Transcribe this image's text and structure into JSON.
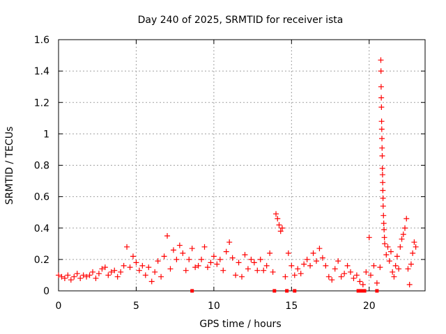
{
  "chart_data": {
    "type": "scatter",
    "title": "Day 240 of 2025, SRMTID for receiver ista",
    "xlabel": "GPS time / hours",
    "ylabel": "SRMTID / TECUs",
    "xlim": [
      0,
      23.6
    ],
    "ylim": [
      0,
      1.6
    ],
    "xticks": [
      0,
      5,
      10,
      15,
      20
    ],
    "xtick_labels": [
      "0",
      "5",
      "10",
      "15",
      "20"
    ],
    "yticks": [
      0,
      0.2,
      0.4,
      0.6,
      0.8,
      1,
      1.2,
      1.4,
      1.6
    ],
    "ytick_labels": [
      "0",
      "0.2",
      "0.4",
      "0.6",
      "0.8",
      "1",
      "1.2",
      "1.4",
      "1.6"
    ],
    "grid": true,
    "marker": "+",
    "color": "#ff0000",
    "series": [
      {
        "name": "SRMTID",
        "points": [
          [
            0.0,
            0.1
          ],
          [
            0.2,
            0.09
          ],
          [
            0.4,
            0.08
          ],
          [
            0.6,
            0.1
          ],
          [
            0.8,
            0.07
          ],
          [
            1.0,
            0.09
          ],
          [
            1.2,
            0.11
          ],
          [
            1.4,
            0.08
          ],
          [
            1.6,
            0.1
          ],
          [
            1.8,
            0.09
          ],
          [
            2.0,
            0.1
          ],
          [
            2.2,
            0.12
          ],
          [
            2.4,
            0.08
          ],
          [
            2.6,
            0.11
          ],
          [
            2.8,
            0.14
          ],
          [
            3.0,
            0.15
          ],
          [
            3.2,
            0.1
          ],
          [
            3.4,
            0.12
          ],
          [
            3.6,
            0.13
          ],
          [
            3.8,
            0.09
          ],
          [
            4.0,
            0.12
          ],
          [
            4.2,
            0.16
          ],
          [
            4.4,
            0.28
          ],
          [
            4.6,
            0.15
          ],
          [
            4.8,
            0.22
          ],
          [
            5.0,
            0.18
          ],
          [
            5.2,
            0.13
          ],
          [
            5.4,
            0.16
          ],
          [
            5.6,
            0.1
          ],
          [
            5.8,
            0.15
          ],
          [
            6.0,
            0.06
          ],
          [
            6.2,
            0.12
          ],
          [
            6.4,
            0.19
          ],
          [
            6.6,
            0.09
          ],
          [
            6.8,
            0.22
          ],
          [
            7.0,
            0.35
          ],
          [
            7.2,
            0.14
          ],
          [
            7.4,
            0.26
          ],
          [
            7.6,
            0.2
          ],
          [
            7.8,
            0.29
          ],
          [
            8.0,
            0.24
          ],
          [
            8.2,
            0.13
          ],
          [
            8.4,
            0.2
          ],
          [
            8.6,
            0.27
          ],
          [
            8.8,
            0.15
          ],
          [
            9.0,
            0.16
          ],
          [
            9.2,
            0.2
          ],
          [
            9.4,
            0.28
          ],
          [
            9.6,
            0.15
          ],
          [
            9.8,
            0.18
          ],
          [
            10.0,
            0.22
          ],
          [
            10.2,
            0.17
          ],
          [
            10.4,
            0.2
          ],
          [
            10.6,
            0.13
          ],
          [
            10.8,
            0.25
          ],
          [
            11.0,
            0.31
          ],
          [
            11.2,
            0.21
          ],
          [
            11.4,
            0.1
          ],
          [
            11.6,
            0.18
          ],
          [
            11.8,
            0.09
          ],
          [
            12.0,
            0.23
          ],
          [
            12.2,
            0.14
          ],
          [
            12.4,
            0.2
          ],
          [
            12.6,
            0.18
          ],
          [
            12.8,
            0.13
          ],
          [
            13.0,
            0.2
          ],
          [
            13.2,
            0.13
          ],
          [
            13.4,
            0.16
          ],
          [
            13.6,
            0.24
          ],
          [
            13.8,
            0.12
          ],
          [
            14.0,
            0.49
          ],
          [
            14.1,
            0.46
          ],
          [
            14.2,
            0.42
          ],
          [
            14.3,
            0.38
          ],
          [
            14.4,
            0.4
          ],
          [
            14.6,
            0.09
          ],
          [
            14.8,
            0.24
          ],
          [
            15.0,
            0.16
          ],
          [
            15.2,
            0.1
          ],
          [
            15.4,
            0.14
          ],
          [
            15.6,
            0.11
          ],
          [
            15.8,
            0.17
          ],
          [
            16.0,
            0.2
          ],
          [
            16.2,
            0.16
          ],
          [
            16.4,
            0.24
          ],
          [
            16.6,
            0.19
          ],
          [
            16.8,
            0.27
          ],
          [
            17.0,
            0.21
          ],
          [
            17.2,
            0.16
          ],
          [
            17.4,
            0.09
          ],
          [
            17.6,
            0.07
          ],
          [
            17.8,
            0.14
          ],
          [
            18.0,
            0.19
          ],
          [
            18.2,
            0.09
          ],
          [
            18.4,
            0.11
          ],
          [
            18.6,
            0.16
          ],
          [
            18.8,
            0.12
          ],
          [
            19.0,
            0.08
          ],
          [
            19.2,
            0.1
          ],
          [
            19.4,
            0.06
          ],
          [
            19.6,
            0.04
          ],
          [
            19.8,
            0.12
          ],
          [
            20.0,
            0.34
          ],
          [
            20.1,
            0.1
          ],
          [
            20.3,
            0.16
          ],
          [
            20.5,
            0.05
          ],
          [
            20.7,
            0.15
          ],
          [
            20.75,
            1.47
          ],
          [
            20.76,
            1.4
          ],
          [
            20.77,
            1.3
          ],
          [
            20.78,
            1.23
          ],
          [
            20.79,
            1.17
          ],
          [
            20.8,
            1.08
          ],
          [
            20.81,
            1.03
          ],
          [
            20.82,
            0.97
          ],
          [
            20.83,
            0.91
          ],
          [
            20.84,
            0.86
          ],
          [
            20.85,
            0.78
          ],
          [
            20.86,
            0.74
          ],
          [
            20.87,
            0.69
          ],
          [
            20.88,
            0.64
          ],
          [
            20.89,
            0.59
          ],
          [
            20.9,
            0.54
          ],
          [
            20.92,
            0.48
          ],
          [
            20.94,
            0.43
          ],
          [
            20.96,
            0.39
          ],
          [
            20.98,
            0.34
          ],
          [
            21.0,
            0.3
          ],
          [
            21.1,
            0.23
          ],
          [
            21.2,
            0.28
          ],
          [
            21.3,
            0.19
          ],
          [
            21.4,
            0.25
          ],
          [
            21.5,
            0.12
          ],
          [
            21.6,
            0.09
          ],
          [
            21.7,
            0.16
          ],
          [
            21.8,
            0.22
          ],
          [
            21.9,
            0.14
          ],
          [
            22.0,
            0.28
          ],
          [
            22.1,
            0.33
          ],
          [
            22.2,
            0.36
          ],
          [
            22.3,
            0.4
          ],
          [
            22.4,
            0.46
          ],
          [
            22.5,
            0.14
          ],
          [
            22.6,
            0.04
          ],
          [
            22.7,
            0.17
          ],
          [
            22.8,
            0.24
          ],
          [
            22.9,
            0.31
          ],
          [
            23.0,
            0.28
          ]
        ]
      }
    ],
    "zero_markers": [
      8.6,
      13.9,
      14.7,
      15.2,
      19.3,
      19.5,
      19.7,
      20.5
    ]
  }
}
